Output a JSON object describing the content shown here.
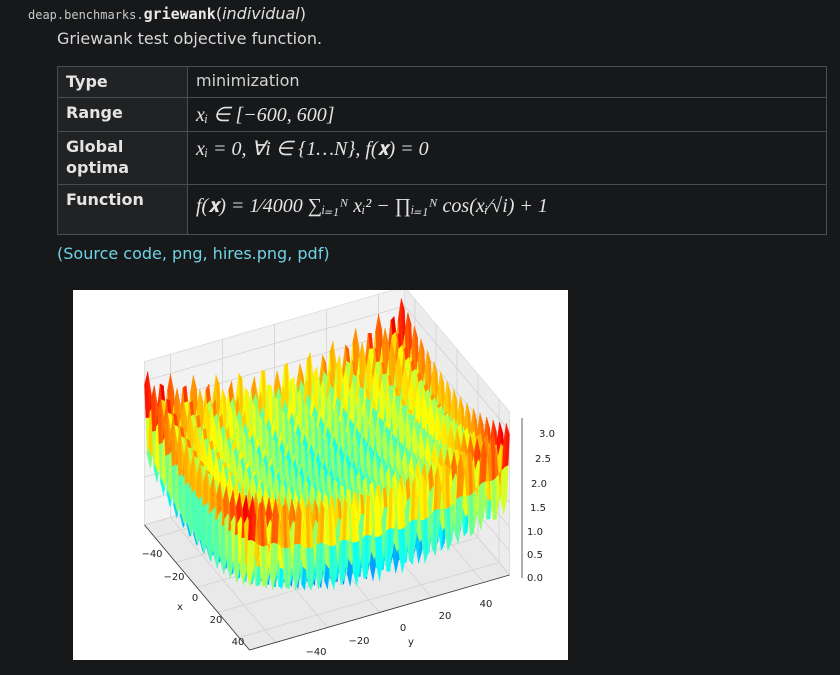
{
  "signature": {
    "module": "deap.benchmarks.",
    "name": "griewank",
    "open": "(",
    "arg": "individual",
    "close": ")"
  },
  "description": "Griewank test objective function.",
  "table": {
    "rows": [
      [
        "Type",
        "minimization"
      ],
      [
        "Range",
        "xᵢ ∈ [−600, 600]"
      ],
      [
        "Global optima",
        "xᵢ = 0, ∀i ∈ {1…N}, f(𝐱) = 0"
      ],
      [
        "Function",
        "f(𝐱) = 1⁄4000 ∑ᵢ₌₁ᴺ xᵢ² − ∏ᵢ₌₁ᴺ cos(xᵢ⁄√i) + 1"
      ]
    ]
  },
  "links": {
    "open": "(",
    "items": [
      "Source code",
      "png",
      "hires.png",
      "pdf"
    ],
    "sep": ", ",
    "close": ")"
  },
  "figure": {
    "x_ticks": [
      "−40",
      "−20",
      "0",
      "20",
      "40"
    ],
    "y_ticks": [
      "−40",
      "−20",
      "0",
      "20",
      "40"
    ],
    "z_ticks": [
      "0.0",
      "0.5",
      "1.0",
      "1.5",
      "2.0",
      "2.5",
      "3.0"
    ],
    "x_label": "x",
    "y_label": "y"
  }
}
